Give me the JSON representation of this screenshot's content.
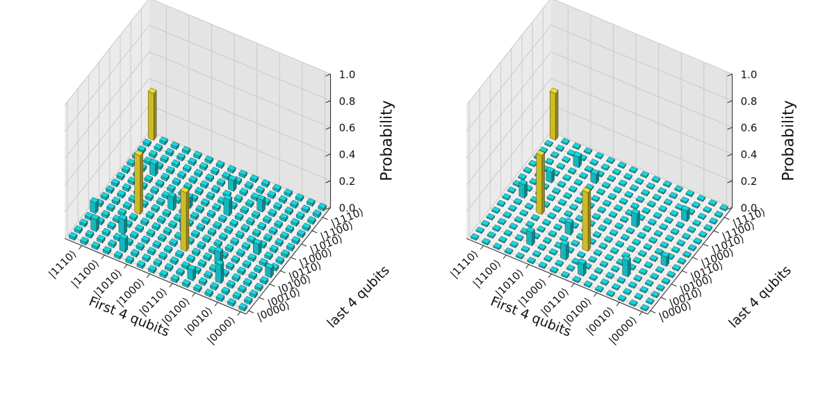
{
  "colors": {
    "bar": "#15d6dc",
    "highlight": "#f0da2a",
    "pane": "#ebebeb",
    "grid": "#c8c8c8",
    "edge": "#222222"
  },
  "state_labels": [
    "|0000⟩",
    "|0010⟩",
    "|0100⟩",
    "|0110⟩",
    "|1000⟩",
    "|1010⟩",
    "|1100⟩",
    "|1110⟩"
  ],
  "chart_data": [
    {
      "type": "bar3d",
      "xlabel": "First 4 qubits",
      "ylabel": "last 4 qubits",
      "zlabel": "Probability",
      "zlim": [
        0,
        1
      ],
      "zticks": [
        "0.0",
        "0.2",
        "0.4",
        "0.6",
        "0.8",
        "1.0"
      ],
      "grid_size": 16,
      "bar_width": 0.5,
      "baseline": 0.02,
      "bars": [
        {
          "x": 3,
          "y": 2,
          "z": 0.14
        },
        {
          "x": 4,
          "y": 4,
          "z": 0.1
        },
        {
          "x": 6,
          "y": 10,
          "z": 0.12
        },
        {
          "x": 2,
          "y": 7,
          "z": 0.08
        },
        {
          "x": 8,
          "y": 6,
          "z": 0.09
        },
        {
          "x": 10,
          "y": 8,
          "z": 0.1
        },
        {
          "x": 12,
          "y": 3,
          "z": 0.11
        },
        {
          "x": 13,
          "y": 11,
          "z": 0.09
        },
        {
          "x": 7,
          "y": 13,
          "z": 0.08
        },
        {
          "x": 11,
          "y": 1,
          "z": 0.1
        },
        {
          "x": 14,
          "y": 2,
          "z": 0.09
        },
        {
          "x": 5,
          "y": 1,
          "z": 0.08
        },
        {
          "x": 9,
          "y": 9,
          "z": 0.08
        },
        {
          "x": 4,
          "y": 12,
          "z": 0.09
        },
        {
          "x": 0,
          "y": 5,
          "z": 0.07
        },
        {
          "x": 15,
          "y": 4,
          "z": 0.08
        },
        {
          "x": 7,
          "y": 4,
          "z": 0.44,
          "highlight": true
        },
        {
          "x": 12,
          "y": 6,
          "z": 0.44,
          "highlight": true
        },
        {
          "x": 15,
          "y": 15,
          "z": 0.35,
          "highlight": true
        }
      ]
    },
    {
      "type": "bar3d",
      "xlabel": "First 4 qubits",
      "ylabel": "last 4 qubits",
      "zlabel": "Probability",
      "zlim": [
        0,
        1
      ],
      "zticks": [
        "0.0",
        "0.2",
        "0.4",
        "0.6",
        "0.8",
        "1.0"
      ],
      "grid_size": 16,
      "bar_width": 0.5,
      "baseline": 0.01,
      "bars": [
        {
          "x": 3,
          "y": 3,
          "z": 0.12
        },
        {
          "x": 5,
          "y": 9,
          "z": 0.1
        },
        {
          "x": 2,
          "y": 12,
          "z": 0.08
        },
        {
          "x": 9,
          "y": 5,
          "z": 0.09
        },
        {
          "x": 11,
          "y": 2,
          "z": 0.1
        },
        {
          "x": 13,
          "y": 10,
          "z": 0.08
        },
        {
          "x": 6,
          "y": 1,
          "z": 0.09
        },
        {
          "x": 10,
          "y": 12,
          "z": 0.07
        },
        {
          "x": 14,
          "y": 7,
          "z": 0.1
        },
        {
          "x": 8,
          "y": 2,
          "z": 0.11
        },
        {
          "x": 1,
          "y": 6,
          "z": 0.07
        },
        {
          "x": 12,
          "y": 13,
          "z": 0.08
        },
        {
          "x": 7,
          "y": 4,
          "z": 0.44,
          "highlight": true
        },
        {
          "x": 12,
          "y": 6,
          "z": 0.44,
          "highlight": true
        },
        {
          "x": 15,
          "y": 15,
          "z": 0.35,
          "highlight": true
        }
      ]
    }
  ]
}
